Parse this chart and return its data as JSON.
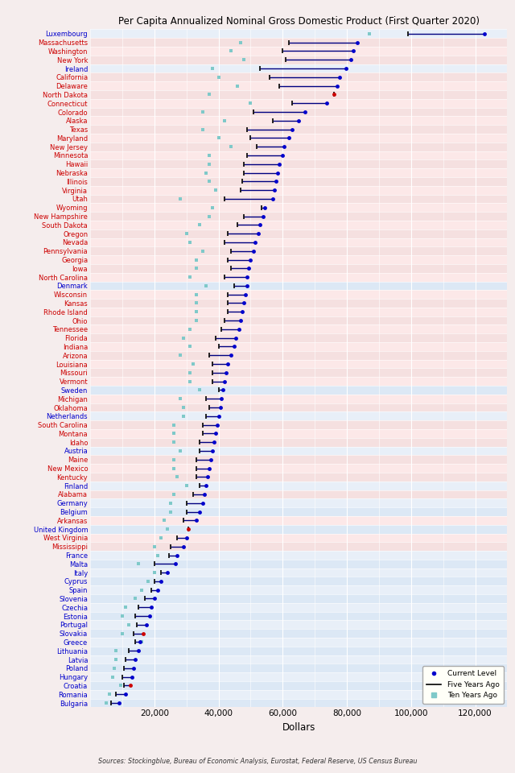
{
  "title": "Per Capita Annualized Nominal Gross Domestic Product (First Quarter 2020)",
  "xlabel": "Dollars",
  "source": "Sources: Stockingblue, Bureau of Economic Analysis, Eurostat, Federal Reserve, US Census Bureau",
  "xlim": [
    0,
    130000
  ],
  "xticks": [
    20000,
    40000,
    60000,
    80000,
    100000,
    120000
  ],
  "xticklabels": [
    "20,000",
    "40,000",
    "60,000",
    "80,000",
    "100,000",
    "120,000"
  ],
  "entities": [
    {
      "name": "Luxembourg",
      "eu": true,
      "current": 122877,
      "five": 99000,
      "ten": 87000,
      "special_dot": false
    },
    {
      "name": "Massachusetts",
      "eu": false,
      "current": 83202,
      "five": 62000,
      "ten": 47000,
      "special_dot": false
    },
    {
      "name": "Washington",
      "eu": false,
      "current": 81966,
      "five": 60000,
      "ten": 44000,
      "special_dot": false
    },
    {
      "name": "New York",
      "eu": false,
      "current": 81328,
      "five": 61000,
      "ten": 48000,
      "special_dot": false
    },
    {
      "name": "Ireland",
      "eu": true,
      "current": 79669,
      "five": 53000,
      "ten": 38000,
      "special_dot": false
    },
    {
      "name": "California",
      "eu": false,
      "current": 77748,
      "five": 56000,
      "ten": 40000,
      "special_dot": false
    },
    {
      "name": "Delaware",
      "eu": false,
      "current": 77000,
      "five": 59000,
      "ten": 46000,
      "special_dot": false
    },
    {
      "name": "North Dakota",
      "eu": false,
      "current": 75897,
      "five": 75897,
      "ten": 37000,
      "special_dot": true
    },
    {
      "name": "Connecticut",
      "eu": false,
      "current": 73618,
      "five": 63000,
      "ten": 50000,
      "special_dot": false
    },
    {
      "name": "Colorado",
      "eu": false,
      "current": 67000,
      "five": 51000,
      "ten": 35000,
      "special_dot": false
    },
    {
      "name": "Alaska",
      "eu": false,
      "current": 65000,
      "five": 57000,
      "ten": 42000,
      "special_dot": false
    },
    {
      "name": "Texas",
      "eu": false,
      "current": 63000,
      "five": 49000,
      "ten": 35000,
      "special_dot": false
    },
    {
      "name": "Maryland",
      "eu": false,
      "current": 62000,
      "five": 50000,
      "ten": 40000,
      "special_dot": false
    },
    {
      "name": "New Jersey",
      "eu": false,
      "current": 60500,
      "five": 52000,
      "ten": 44000,
      "special_dot": false
    },
    {
      "name": "Minnesota",
      "eu": false,
      "current": 60000,
      "five": 49000,
      "ten": 37000,
      "special_dot": false
    },
    {
      "name": "Hawaii",
      "eu": false,
      "current": 59000,
      "five": 48000,
      "ten": 37000,
      "special_dot": false
    },
    {
      "name": "Nebraska",
      "eu": false,
      "current": 58500,
      "five": 48000,
      "ten": 36000,
      "special_dot": false
    },
    {
      "name": "Illinois",
      "eu": false,
      "current": 58000,
      "five": 47500,
      "ten": 37000,
      "special_dot": false
    },
    {
      "name": "Virginia",
      "eu": false,
      "current": 57500,
      "five": 47000,
      "ten": 39000,
      "special_dot": false
    },
    {
      "name": "Utah",
      "eu": false,
      "current": 57000,
      "five": 42000,
      "ten": 28000,
      "special_dot": false
    },
    {
      "name": "Wyoming",
      "eu": false,
      "current": 54500,
      "five": 53500,
      "ten": 38000,
      "special_dot": false
    },
    {
      "name": "New Hampshire",
      "eu": false,
      "current": 54000,
      "five": 48000,
      "ten": 37000,
      "special_dot": false
    },
    {
      "name": "South Dakota",
      "eu": false,
      "current": 53000,
      "five": 46000,
      "ten": 34000,
      "special_dot": false
    },
    {
      "name": "Oregon",
      "eu": false,
      "current": 52500,
      "five": 43000,
      "ten": 30000,
      "special_dot": false
    },
    {
      "name": "Nevada",
      "eu": false,
      "current": 51500,
      "five": 42000,
      "ten": 31000,
      "special_dot": false
    },
    {
      "name": "Pennsylvania",
      "eu": false,
      "current": 51000,
      "five": 44000,
      "ten": 35000,
      "special_dot": false
    },
    {
      "name": "Georgia",
      "eu": false,
      "current": 50000,
      "five": 43000,
      "ten": 33000,
      "special_dot": false
    },
    {
      "name": "Iowa",
      "eu": false,
      "current": 49500,
      "five": 44000,
      "ten": 33000,
      "special_dot": false
    },
    {
      "name": "North Carolina",
      "eu": false,
      "current": 49000,
      "five": 42000,
      "ten": 31000,
      "special_dot": false
    },
    {
      "name": "Denmark",
      "eu": true,
      "current": 49000,
      "five": 45000,
      "ten": 36000,
      "special_dot": false
    },
    {
      "name": "Wisconsin",
      "eu": false,
      "current": 48500,
      "five": 43000,
      "ten": 33000,
      "special_dot": false
    },
    {
      "name": "Kansas",
      "eu": false,
      "current": 48000,
      "five": 43000,
      "ten": 33000,
      "special_dot": false
    },
    {
      "name": "Rhode Island",
      "eu": false,
      "current": 47500,
      "five": 43000,
      "ten": 33000,
      "special_dot": false
    },
    {
      "name": "Ohio",
      "eu": false,
      "current": 47000,
      "five": 42000,
      "ten": 33000,
      "special_dot": false
    },
    {
      "name": "Tennessee",
      "eu": false,
      "current": 46500,
      "five": 41000,
      "ten": 31000,
      "special_dot": false
    },
    {
      "name": "Florida",
      "eu": false,
      "current": 45500,
      "five": 39000,
      "ten": 29000,
      "special_dot": false
    },
    {
      "name": "Indiana",
      "eu": false,
      "current": 45000,
      "five": 40000,
      "ten": 31000,
      "special_dot": false
    },
    {
      "name": "Arizona",
      "eu": false,
      "current": 44000,
      "five": 37000,
      "ten": 28000,
      "special_dot": false
    },
    {
      "name": "Louisiana",
      "eu": false,
      "current": 43000,
      "five": 38000,
      "ten": 32000,
      "special_dot": false
    },
    {
      "name": "Missouri",
      "eu": false,
      "current": 42500,
      "five": 38000,
      "ten": 31000,
      "special_dot": false
    },
    {
      "name": "Vermont",
      "eu": false,
      "current": 42000,
      "five": 38000,
      "ten": 31000,
      "special_dot": false
    },
    {
      "name": "Sweden",
      "eu": true,
      "current": 41500,
      "five": 40000,
      "ten": 34000,
      "special_dot": false
    },
    {
      "name": "Michigan",
      "eu": false,
      "current": 41000,
      "five": 36000,
      "ten": 28000,
      "special_dot": false
    },
    {
      "name": "Oklahoma",
      "eu": false,
      "current": 40500,
      "five": 37000,
      "ten": 29000,
      "special_dot": false
    },
    {
      "name": "Netherlands",
      "eu": true,
      "current": 40000,
      "five": 36000,
      "ten": 29000,
      "special_dot": false
    },
    {
      "name": "South Carolina",
      "eu": false,
      "current": 39500,
      "five": 35000,
      "ten": 26000,
      "special_dot": false
    },
    {
      "name": "Montana",
      "eu": false,
      "current": 39000,
      "five": 35000,
      "ten": 26000,
      "special_dot": false
    },
    {
      "name": "Idaho",
      "eu": false,
      "current": 38500,
      "five": 34000,
      "ten": 26000,
      "special_dot": false
    },
    {
      "name": "Austria",
      "eu": true,
      "current": 38000,
      "five": 34000,
      "ten": 28000,
      "special_dot": false
    },
    {
      "name": "Maine",
      "eu": false,
      "current": 37500,
      "five": 33000,
      "ten": 26000,
      "special_dot": false
    },
    {
      "name": "New Mexico",
      "eu": false,
      "current": 37000,
      "five": 33000,
      "ten": 26000,
      "special_dot": false
    },
    {
      "name": "Kentucky",
      "eu": false,
      "current": 36500,
      "five": 33000,
      "ten": 27000,
      "special_dot": false
    },
    {
      "name": "Finland",
      "eu": true,
      "current": 36000,
      "five": 34000,
      "ten": 30000,
      "special_dot": false
    },
    {
      "name": "Alabama",
      "eu": false,
      "current": 35500,
      "five": 32000,
      "ten": 26000,
      "special_dot": false
    },
    {
      "name": "Germany",
      "eu": true,
      "current": 35000,
      "five": 30000,
      "ten": 25000,
      "special_dot": false
    },
    {
      "name": "Belgium",
      "eu": true,
      "current": 34000,
      "five": 30000,
      "ten": 25000,
      "special_dot": false
    },
    {
      "name": "Arkansas",
      "eu": false,
      "current": 33000,
      "five": 29000,
      "ten": 23000,
      "special_dot": false
    },
    {
      "name": "United Kingdom",
      "eu": true,
      "current": 30500,
      "five": 30500,
      "ten": 24000,
      "special_dot": true
    },
    {
      "name": "West Virginia",
      "eu": false,
      "current": 30000,
      "five": 27000,
      "ten": 22000,
      "special_dot": false
    },
    {
      "name": "Mississippi",
      "eu": false,
      "current": 29000,
      "five": 25000,
      "ten": 20000,
      "special_dot": false
    },
    {
      "name": "France",
      "eu": true,
      "current": 27000,
      "five": 24500,
      "ten": 21000,
      "special_dot": false
    },
    {
      "name": "Malta",
      "eu": true,
      "current": 26500,
      "five": 20000,
      "ten": 15000,
      "special_dot": false
    },
    {
      "name": "Italy",
      "eu": true,
      "current": 24000,
      "five": 22000,
      "ten": 20000,
      "special_dot": false
    },
    {
      "name": "Cyprus",
      "eu": true,
      "current": 22000,
      "five": 20000,
      "ten": 18000,
      "special_dot": false
    },
    {
      "name": "Spain",
      "eu": true,
      "current": 21000,
      "five": 19000,
      "ten": 16000,
      "special_dot": false
    },
    {
      "name": "Slovenia",
      "eu": true,
      "current": 20000,
      "five": 17000,
      "ten": 14000,
      "special_dot": false
    },
    {
      "name": "Czechia",
      "eu": true,
      "current": 19000,
      "five": 15000,
      "ten": 11000,
      "special_dot": false
    },
    {
      "name": "Estonia",
      "eu": true,
      "current": 18500,
      "five": 14000,
      "ten": 10000,
      "special_dot": false
    },
    {
      "name": "Portugal",
      "eu": true,
      "current": 17500,
      "five": 14500,
      "ten": 12000,
      "special_dot": false
    },
    {
      "name": "Slovakia",
      "eu": true,
      "current": 16500,
      "five": 13500,
      "ten": 10000,
      "special_dot": true
    },
    {
      "name": "Greece",
      "eu": true,
      "current": 15500,
      "five": 14000,
      "ten": 16000,
      "special_dot": false
    },
    {
      "name": "Lithuania",
      "eu": true,
      "current": 15000,
      "five": 12000,
      "ten": 8000,
      "special_dot": false
    },
    {
      "name": "Latvia",
      "eu": true,
      "current": 14000,
      "five": 11000,
      "ten": 8000,
      "special_dot": false
    },
    {
      "name": "Poland",
      "eu": true,
      "current": 13500,
      "five": 10500,
      "ten": 7500,
      "special_dot": false
    },
    {
      "name": "Hungary",
      "eu": true,
      "current": 13000,
      "five": 10000,
      "ten": 7000,
      "special_dot": false
    },
    {
      "name": "Croatia",
      "eu": true,
      "current": 12500,
      "five": 10500,
      "ten": 9500,
      "special_dot": true
    },
    {
      "name": "Romania",
      "eu": true,
      "current": 11000,
      "five": 8000,
      "ten": 6000,
      "special_dot": false
    },
    {
      "name": "Bulgaria",
      "eu": true,
      "current": 9000,
      "five": 6500,
      "ten": 5000,
      "special_dot": false
    }
  ],
  "eu_label_color": "#0000cc",
  "us_label_color": "#cc0000",
  "line_color": "#000080",
  "dot_color": "#0000cc",
  "special_dot_color": "#cc0000",
  "ten_color": "#7fc9c9",
  "five_tick_color": "#000000",
  "row_bg_us_even": "#fce8e8",
  "row_bg_us_odd": "#f5e0e0",
  "row_bg_eu_even": "#e8eff8",
  "row_bg_eu_odd": "#dce8f5",
  "grid_color": "#ffffff",
  "fig_bg": "#f5eded"
}
